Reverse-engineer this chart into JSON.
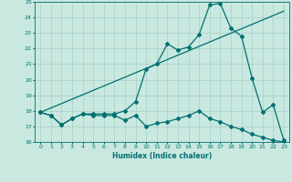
{
  "title": "",
  "xlabel": "Humidex (Indice chaleur)",
  "ylabel": "",
  "xlim": [
    -0.5,
    23.5
  ],
  "ylim": [
    16,
    25
  ],
  "xticks": [
    0,
    1,
    2,
    3,
    4,
    5,
    6,
    7,
    8,
    9,
    10,
    11,
    12,
    13,
    14,
    15,
    16,
    17,
    18,
    19,
    20,
    21,
    22,
    23
  ],
  "yticks": [
    16,
    17,
    18,
    19,
    20,
    21,
    22,
    23,
    24,
    25
  ],
  "bg_color": "#c8e8e0",
  "line_color": "#007070",
  "grid_color": "#a0c8c0",
  "line1_x": [
    0,
    1,
    2,
    3,
    4,
    5,
    6,
    7,
    8,
    9,
    10,
    11,
    12,
    13,
    14,
    15,
    16,
    17,
    18,
    19,
    20,
    21,
    22,
    23
  ],
  "line1_y": [
    17.9,
    17.7,
    17.1,
    17.5,
    17.8,
    17.7,
    17.7,
    17.7,
    17.4,
    17.7,
    17.0,
    17.2,
    17.3,
    17.5,
    17.7,
    18.0,
    17.5,
    17.3,
    17.0,
    16.8,
    16.5,
    16.3,
    16.1,
    16.0
  ],
  "line2_x": [
    0,
    1,
    2,
    3,
    4,
    5,
    6,
    7,
    8,
    9,
    10,
    11,
    12,
    13,
    14,
    15,
    16,
    17,
    18,
    19,
    20,
    21,
    22,
    23
  ],
  "line2_y": [
    17.9,
    17.7,
    17.1,
    17.5,
    17.8,
    17.8,
    17.8,
    17.8,
    18.0,
    18.6,
    20.7,
    21.0,
    22.3,
    21.9,
    22.1,
    22.9,
    24.8,
    24.9,
    23.3,
    22.8,
    20.1,
    17.9,
    18.4,
    16.1
  ],
  "line3_x": [
    0,
    23
  ],
  "line3_y": [
    17.9,
    24.4
  ],
  "marker": "D",
  "markersize": 2,
  "linewidth": 0.9
}
